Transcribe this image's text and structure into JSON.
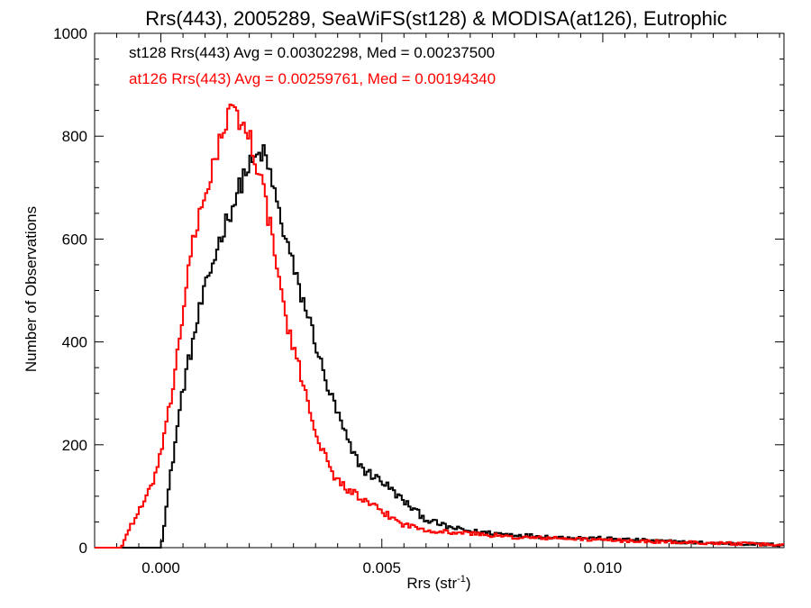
{
  "chart_data": {
    "type": "line",
    "title": "Rrs(443), 2005289, SeaWiFS(st128) & MODISA(at126), Eutrophic",
    "xlabel": "Rrs (str",
    "xlabel_sup": "-1",
    "xlabel_close": ")",
    "ylabel": "Number of Observations",
    "xlim": [
      -0.0015,
      0.0141
    ],
    "ylim": [
      0,
      1000
    ],
    "xticks": [
      0.0,
      0.005,
      0.01
    ],
    "xtick_labels": [
      "0.000",
      "0.005",
      "0.010"
    ],
    "yticks": [
      0,
      200,
      400,
      600,
      800,
      1000
    ],
    "ytick_labels": [
      "0",
      "200",
      "400",
      "600",
      "800",
      "1000"
    ],
    "xminor_step": 0.0005,
    "yminor_step": 50,
    "grid": false,
    "legend_placement": "top-left",
    "series": [
      {
        "name": "st128",
        "color": "#000000",
        "annotation": "st128 Rrs(443) Avg = 0.00302298, Med = 0.00237500",
        "x": [
          -0.0015,
          -0.0005,
          0.0,
          0.0003,
          0.0005,
          0.0007,
          0.0009,
          0.0011,
          0.0013,
          0.0015,
          0.0017,
          0.0019,
          0.0021,
          0.0023,
          0.0025,
          0.0027,
          0.0029,
          0.0031,
          0.0033,
          0.0035,
          0.0037,
          0.004,
          0.0043,
          0.0046,
          0.005,
          0.0055,
          0.006,
          0.0065,
          0.007,
          0.008,
          0.009,
          0.01,
          0.011,
          0.012,
          0.013,
          0.0141
        ],
        "y": [
          0,
          0,
          0,
          190,
          310,
          390,
          470,
          530,
          590,
          640,
          680,
          730,
          750,
          770,
          720,
          640,
          580,
          510,
          460,
          400,
          330,
          260,
          190,
          150,
          130,
          90,
          55,
          40,
          32,
          25,
          20,
          18,
          14,
          10,
          8,
          5
        ]
      },
      {
        "name": "at126",
        "color": "#ff0000",
        "annotation": "at126 Rrs(443) Avg = 0.00259761, Med = 0.00194340",
        "x": [
          -0.0015,
          -0.0009,
          -0.0007,
          -0.0005,
          -0.0003,
          -0.0001,
          0.0001,
          0.0003,
          0.0005,
          0.0007,
          0.0009,
          0.0011,
          0.0013,
          0.0015,
          0.0016,
          0.0018,
          0.002,
          0.0022,
          0.0024,
          0.0026,
          0.0028,
          0.003,
          0.0032,
          0.0034,
          0.0036,
          0.0038,
          0.004,
          0.0043,
          0.0046,
          0.005,
          0.0055,
          0.006,
          0.0065,
          0.007,
          0.008,
          0.009,
          0.01,
          0.011,
          0.012,
          0.013,
          0.0141
        ],
        "y": [
          0,
          0,
          40,
          70,
          100,
          150,
          220,
          330,
          460,
          580,
          650,
          720,
          780,
          830,
          850,
          830,
          800,
          740,
          660,
          560,
          460,
          380,
          330,
          260,
          200,
          160,
          130,
          110,
          90,
          70,
          45,
          35,
          30,
          28,
          20,
          18,
          15,
          12,
          10,
          8,
          5
        ]
      }
    ]
  }
}
